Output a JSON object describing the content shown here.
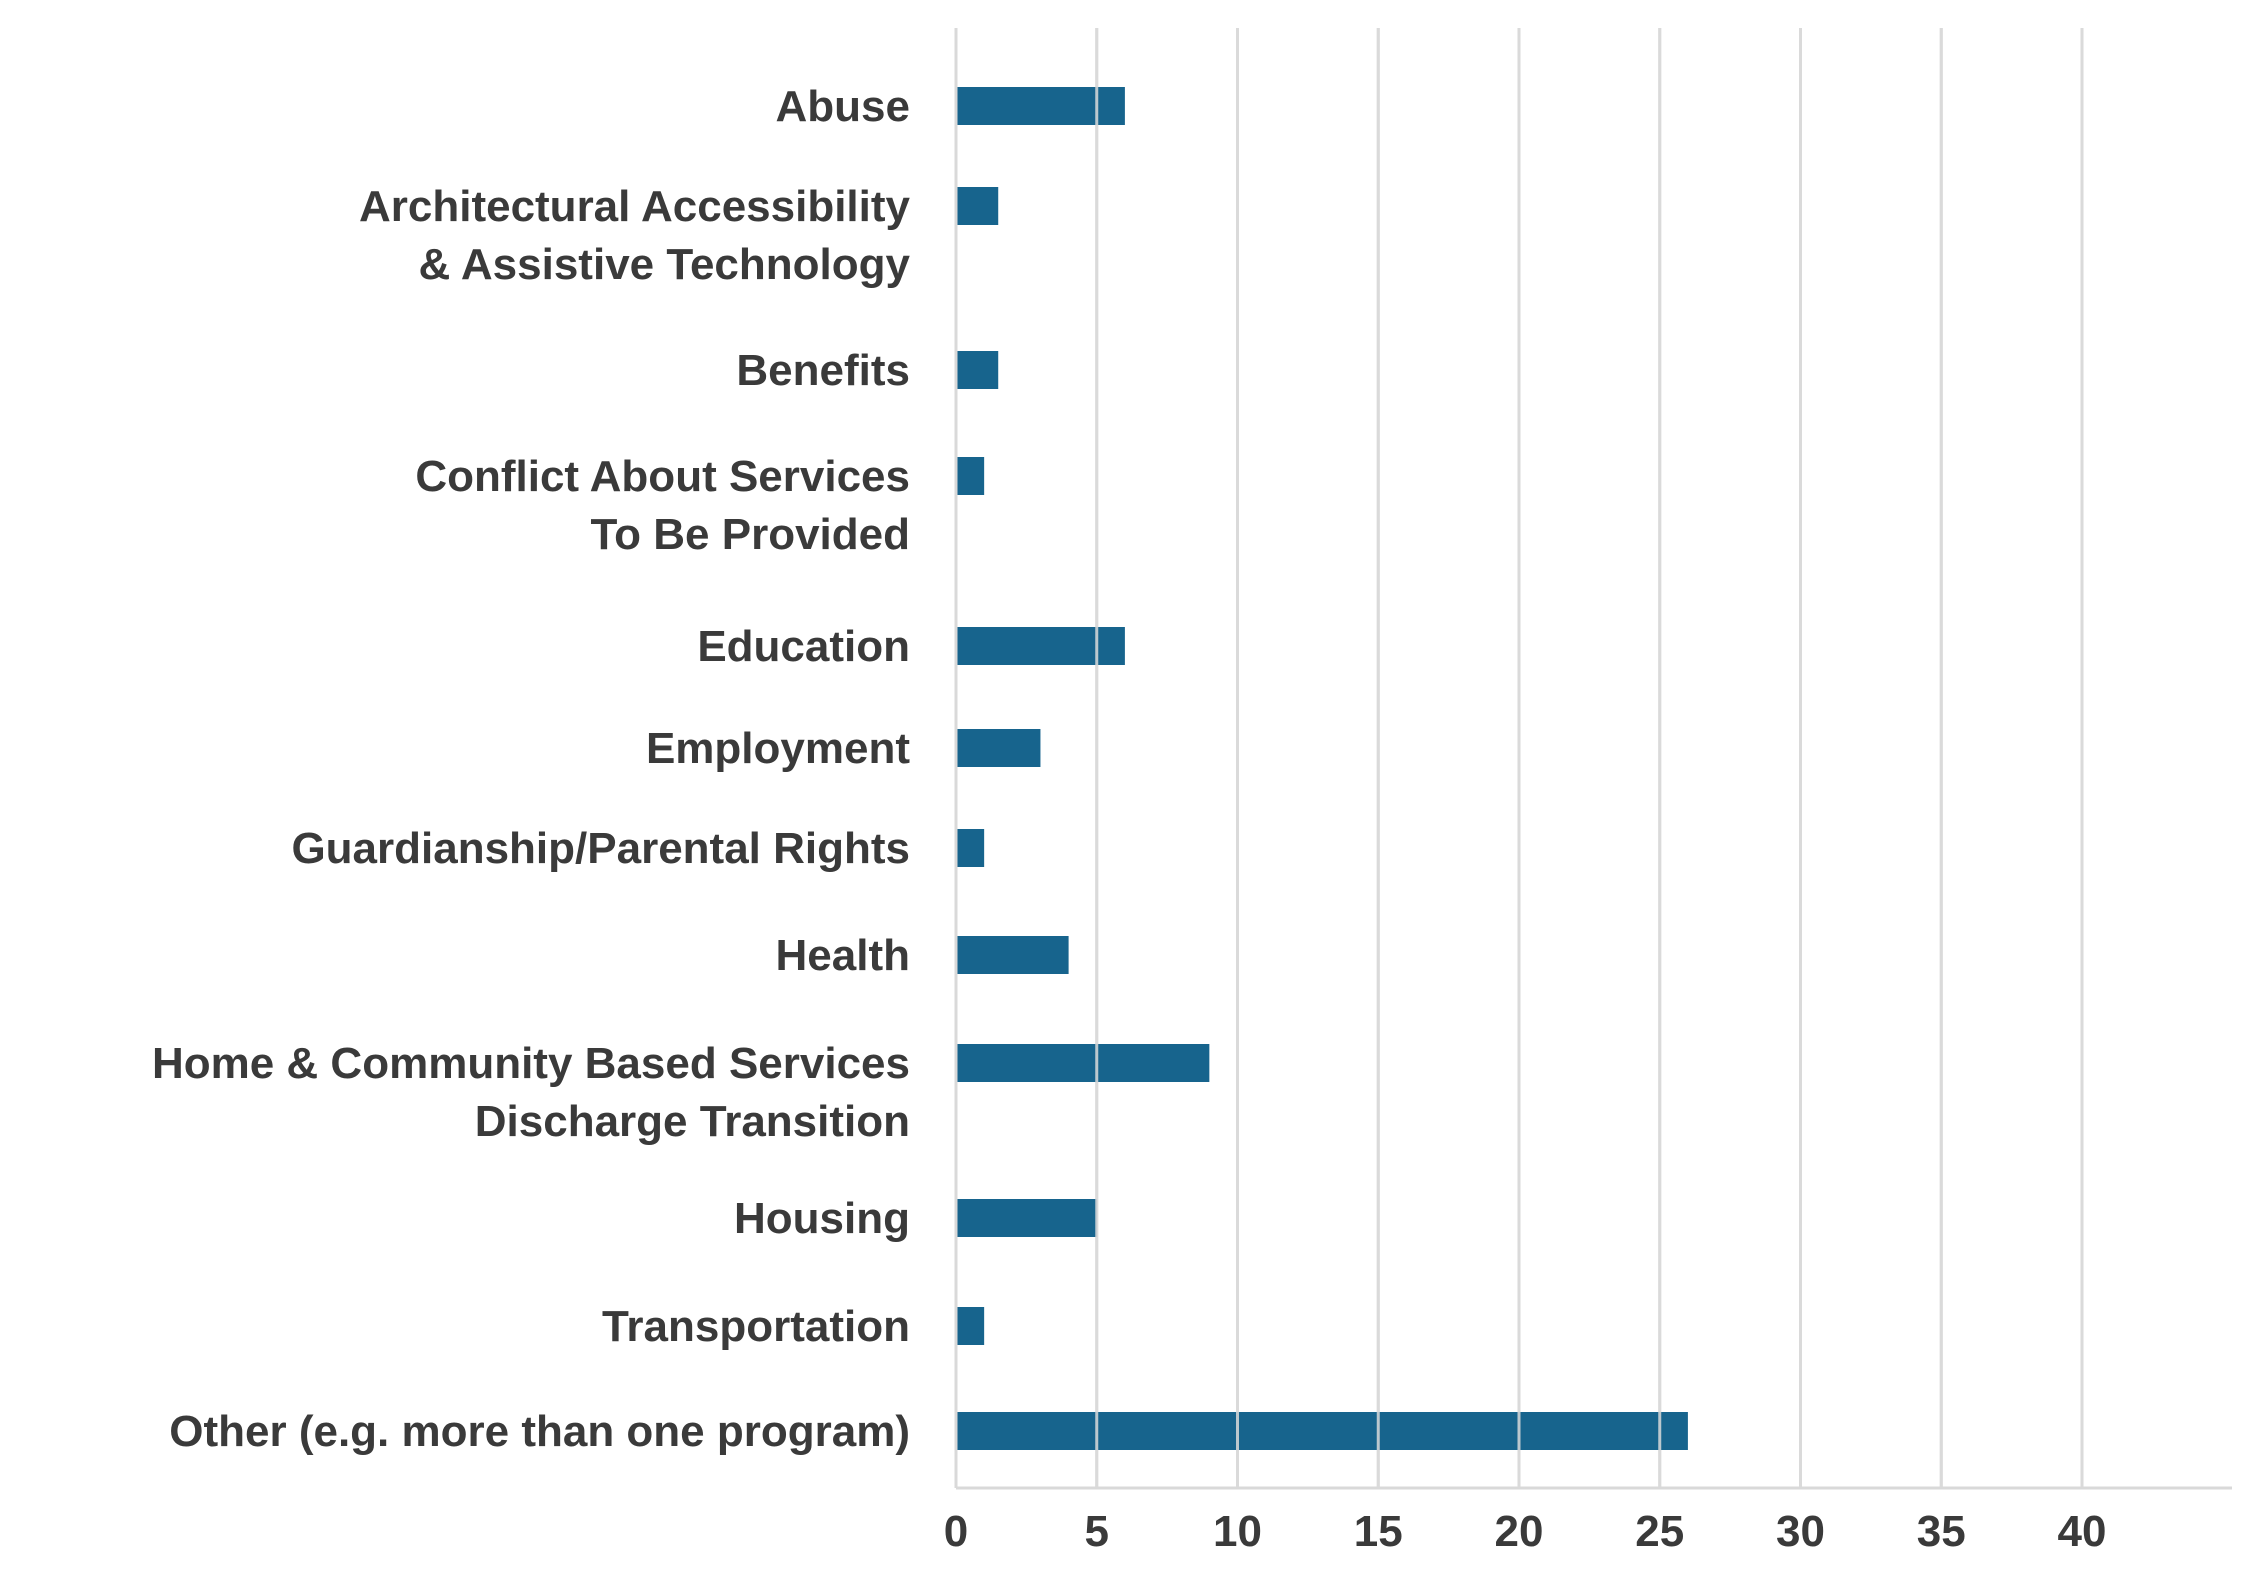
{
  "chart_data": {
    "type": "bar",
    "orientation": "horizontal",
    "title": "",
    "xlabel": "",
    "ylabel": "",
    "categories": [
      [
        "Abuse"
      ],
      [
        "Architectural Accessibility",
        "& Assistive Technology"
      ],
      [
        "Benefits"
      ],
      [
        "Conflict About Services",
        "To Be Provided"
      ],
      [
        "Education"
      ],
      [
        "Employment"
      ],
      [
        "Guardianship/Parental Rights"
      ],
      [
        "Health"
      ],
      [
        "Home & Community Based Services",
        "Discharge Transition"
      ],
      [
        "Housing"
      ],
      [
        "Transportation"
      ],
      [
        "Other (e.g. more than one program)"
      ]
    ],
    "values": [
      6,
      1.5,
      1.5,
      1,
      6,
      3,
      1,
      4,
      9,
      5,
      1,
      26
    ],
    "xlim": [
      0,
      44
    ],
    "xticks": [
      "0",
      "5",
      "10",
      "15",
      "20",
      "25",
      "30",
      "35",
      "40"
    ],
    "grid": "vertical",
    "legend": "none",
    "colors": {
      "bar": "#17648d",
      "grid": "#d9d9d9",
      "axis": "#d9d9d9",
      "text": "#3a3a3a"
    }
  }
}
